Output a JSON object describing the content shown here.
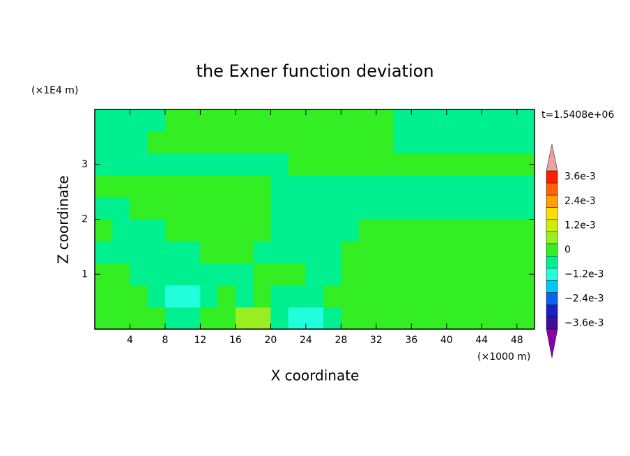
{
  "chart_data": {
    "type": "contour",
    "title": "the Exner function deviation",
    "x_label": "X coordinate",
    "y_label": "Z coordinate",
    "x_unit": "(×1000 m)",
    "y_unit": "(×1E4 m)",
    "time_label": "t=1.5408e+06",
    "xlim": [
      0,
      50
    ],
    "ylim": [
      0,
      4
    ],
    "xticks": [
      4,
      8,
      12,
      16,
      20,
      24,
      28,
      32,
      36,
      40,
      44,
      48
    ],
    "yticks": [
      1,
      2,
      3
    ],
    "x_edges": [
      0,
      2,
      4,
      6,
      8,
      10,
      12,
      14,
      16,
      18,
      20,
      22,
      24,
      26,
      28,
      30,
      32,
      34,
      36,
      38,
      40,
      42,
      44,
      46,
      48,
      50
    ],
    "y_edges": [
      0,
      0.4,
      0.8,
      1.2,
      1.6,
      2.0,
      2.4,
      2.8,
      3.2,
      3.6,
      4.0
    ],
    "z": [
      [
        0,
        0,
        0,
        0,
        -0.0006,
        -0.0006,
        0,
        0,
        0.0006,
        0.0006,
        -0.0006,
        -0.0012,
        -0.0012,
        -0.0006,
        0,
        0,
        0,
        0,
        0,
        0,
        0,
        0,
        0,
        0,
        0
      ],
      [
        0,
        0,
        0,
        -0.0006,
        -0.0012,
        -0.0012,
        -0.0006,
        0,
        -0.0006,
        0,
        -0.0006,
        -0.0006,
        -0.0006,
        0,
        0,
        0,
        0,
        0,
        0,
        0,
        0,
        0,
        0,
        0,
        0
      ],
      [
        0,
        0,
        -0.0006,
        -0.0006,
        -0.0006,
        -0.0006,
        -0.0006,
        -0.0006,
        -0.0006,
        0,
        0,
        0,
        -0.0006,
        -0.0006,
        0,
        0,
        0,
        0,
        0,
        0,
        0,
        0,
        0,
        0,
        0
      ],
      [
        -0.0006,
        -0.0006,
        -0.0006,
        -0.0006,
        -0.0006,
        -0.0006,
        0,
        0,
        0,
        -0.0006,
        -0.0006,
        -0.0006,
        -0.0006,
        -0.0006,
        0,
        0,
        0,
        0,
        0,
        0,
        0,
        0,
        0,
        0,
        0
      ],
      [
        0,
        -0.0006,
        -0.0006,
        -0.0006,
        0,
        0,
        0,
        0,
        0,
        0,
        -0.0006,
        -0.0006,
        -0.0006,
        -0.0006,
        -0.0006,
        0,
        0,
        0,
        0,
        0,
        0,
        0,
        0,
        0,
        0
      ],
      [
        -0.0006,
        -0.0006,
        0,
        0,
        0,
        0,
        0,
        0,
        0,
        0,
        -0.0006,
        -0.0006,
        -0.0006,
        -0.0006,
        -0.0006,
        -0.0006,
        -0.0006,
        -0.0006,
        -0.0006,
        -0.0006,
        -0.0006,
        -0.0006,
        -0.0006,
        -0.0006,
        -0.0006
      ],
      [
        0,
        0,
        0,
        0,
        0,
        0,
        0,
        0,
        0,
        0,
        -0.0006,
        -0.0006,
        -0.0006,
        -0.0006,
        -0.0006,
        -0.0006,
        -0.0006,
        -0.0006,
        -0.0006,
        -0.0006,
        -0.0006,
        -0.0006,
        -0.0006,
        -0.0006,
        -0.0006
      ],
      [
        -0.0006,
        -0.0006,
        -0.0006,
        -0.0006,
        -0.0006,
        -0.0006,
        -0.0006,
        -0.0006,
        -0.0006,
        -0.0006,
        -0.0006,
        0,
        0,
        0,
        0,
        0,
        0,
        0,
        0,
        0,
        0,
        0,
        0,
        0,
        0
      ],
      [
        -0.0006,
        -0.0006,
        -0.0006,
        0,
        0,
        0,
        0,
        0,
        0,
        0,
        0,
        0,
        0,
        0,
        0,
        0,
        0,
        -0.0006,
        -0.0006,
        -0.0006,
        -0.0006,
        -0.0006,
        -0.0006,
        -0.0006,
        -0.0006
      ],
      [
        -0.0006,
        -0.0006,
        -0.0006,
        -0.0006,
        0,
        0,
        0,
        0,
        0,
        0,
        0,
        0,
        0,
        0,
        0,
        0,
        0,
        -0.0006,
        -0.0006,
        -0.0006,
        -0.0006,
        -0.0006,
        -0.0006,
        -0.0006,
        -0.0006
      ]
    ],
    "colorbar": {
      "bounds": [
        -0.0039,
        -0.0033,
        -0.0027,
        -0.0021,
        -0.0015,
        -0.0009,
        -0.0003,
        0.0003,
        0.0009,
        0.0015,
        0.0021,
        0.0027,
        0.0033,
        0.0039
      ],
      "colors": [
        "#3c0f96",
        "#1e1ec8",
        "#0a64f0",
        "#00c8ff",
        "#22ffdd",
        "#00f090",
        "#33ee22",
        "#99ee22",
        "#ccee00",
        "#ffdd00",
        "#ffa000",
        "#ff6400",
        "#ff1e00"
      ],
      "under_color": "#8c00aa",
      "over_color": "#f0a0a0",
      "ticks": [
        {
          "value": 0.0036,
          "label": "3.6e-3"
        },
        {
          "value": 0.0024,
          "label": "2.4e-3"
        },
        {
          "value": 0.0012,
          "label": "1.2e-3"
        },
        0,
        {
          "value": -0.0012,
          "label": "−1.2e-3"
        },
        {
          "value": -0.0024,
          "label": "−2.4e-3"
        },
        {
          "value": -0.0036,
          "label": "−3.6e-3"
        }
      ]
    }
  }
}
